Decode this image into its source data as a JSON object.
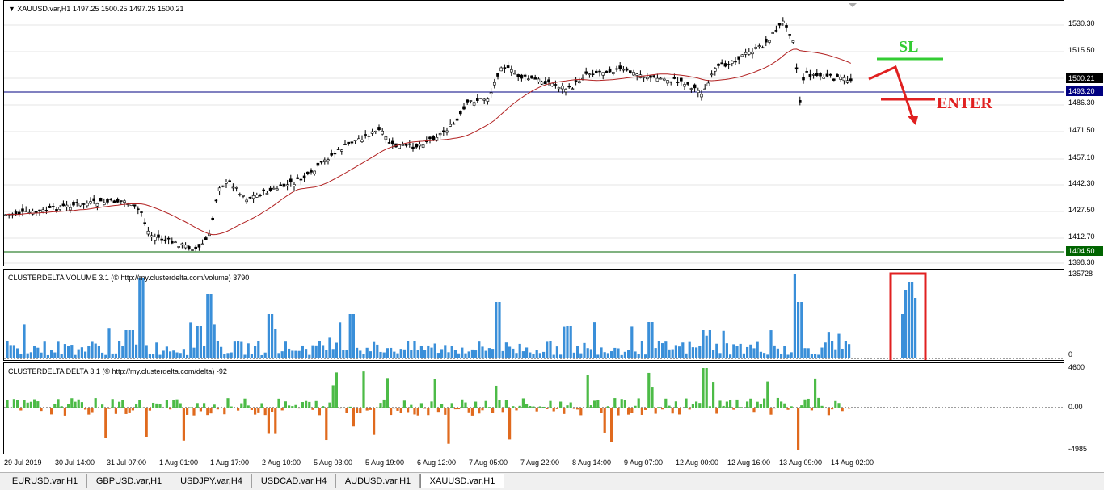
{
  "main": {
    "title": "▼ XAUUSD.var,H1  1497.25 1500.25 1497.25 1500.21",
    "price_labels": [
      "1530.30",
      "1515.50",
      "1500.21",
      "1493.20",
      "1486.30",
      "1471.50",
      "1457.10",
      "1442.30",
      "1427.50",
      "1412.70",
      "1404.50",
      "1398.30"
    ],
    "current_price_tag": "1500.21",
    "level_tag_blue": "1493.20",
    "level_tag_green": "1404.50",
    "annotations": {
      "sl": "SL",
      "enter": "ENTER"
    },
    "colors": {
      "up_candle": "#000000",
      "ma_line": "#b22222",
      "blue_level": "#000080",
      "green_level": "#006400",
      "sl_line": "#33cc33",
      "enter_line": "#e02020"
    }
  },
  "volume": {
    "title": "CLUSTERDELTA VOLUME 3.1 (© http://my.clusterdelta.com/volume) 3790",
    "axis_top": "135728",
    "axis_bottom": "0",
    "bar_color": "#3a8fd9"
  },
  "delta": {
    "title": "CLUSTERDELTA DELTA 3.1 (© http://my.clusterdelta.com/delta) -92",
    "axis_top": "4600",
    "axis_mid": "0.00",
    "axis_bottom": "-4985",
    "pos_color": "#4cbb47",
    "neg_color": "#e06a1e"
  },
  "time_labels": [
    "29 Jul 2019",
    "30 Jul 14:00",
    "31 Jul 07:00",
    "1 Aug 01:00",
    "1 Aug 17:00",
    "2 Aug 10:00",
    "5 Aug 03:00",
    "5 Aug 19:00",
    "6 Aug 12:00",
    "7 Aug 05:00",
    "7 Aug 22:00",
    "8 Aug 14:00",
    "9 Aug 07:00",
    "12 Aug 00:00",
    "12 Aug 16:00",
    "13 Aug 09:00",
    "14 Aug 02:00"
  ],
  "tabs": [
    {
      "label": "EURUSD.var,H1",
      "active": false
    },
    {
      "label": "GBPUSD.var,H1",
      "active": false
    },
    {
      "label": "USDJPY.var,H4",
      "active": false
    },
    {
      "label": "USDCAD.var,H4",
      "active": false
    },
    {
      "label": "AUDUSD.var,H1",
      "active": false
    },
    {
      "label": "XAUUSD.var,H1",
      "active": true
    }
  ]
}
